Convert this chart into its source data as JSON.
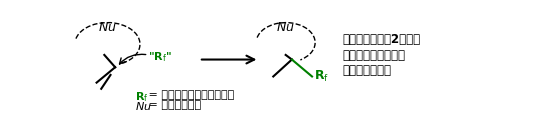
{
  "bg_color": "#ffffff",
  "black": "#000000",
  "green": "#008000",
  "fig_width": 5.37,
  "fig_height": 1.24,
  "dpi": 100,
  "explain_line1": "二重結合に対し2種類の",
  "explain_line2": "官能基を一挙に付加",
  "explain_line3": "（二官能基化）"
}
